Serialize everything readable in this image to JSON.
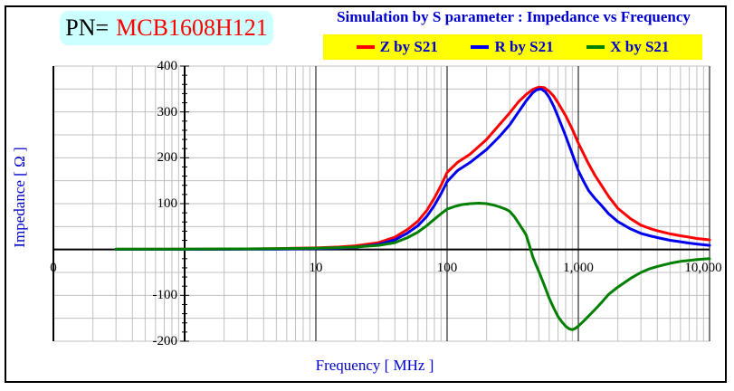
{
  "pn": {
    "prefix": "PN=",
    "part_number": "MCB1608H121",
    "box_color": "#CCFFFF"
  },
  "title": "Simulation by S parameter : Impedance vs Frequency",
  "legend": {
    "background": "#FFFF00",
    "items": [
      {
        "label": "Z by S21",
        "color": "#FF0000"
      },
      {
        "label": "R by S21",
        "color": "#0000EE"
      },
      {
        "label": "X by S21",
        "color": "#007F00"
      }
    ]
  },
  "axes": {
    "x_title": "Frequency [ MHz ]",
    "y_title": "Impedance [ Ω ]",
    "x_ticks": [
      {
        "label": "0",
        "f": 0.1
      },
      {
        "label": "10",
        "f": 10
      },
      {
        "label": "100",
        "f": 100
      },
      {
        "label": "1,000",
        "f": 1000
      },
      {
        "label": "10,000",
        "f": 10000,
        "dx": -7
      }
    ],
    "y_ticks": [
      400,
      300,
      200,
      100,
      -100,
      -200
    ]
  },
  "colors": {
    "text_blue": "#0000CC",
    "gridline": "#C0C0C0",
    "axis_black": "#000000"
  },
  "chart_data": {
    "type": "line",
    "title": "Simulation by S parameter : Impedance vs Frequency",
    "xlabel": "Frequency [ MHz ]",
    "ylabel": "Impedance [ Ω ]",
    "x_scale": "log",
    "xlim_mhz": [
      0.1,
      10000
    ],
    "ylim_ohm": [
      -200,
      400
    ],
    "grid": "on",
    "legend_position": "top",
    "series": [
      {
        "name": "Z by S21",
        "color": "#FF0000",
        "points": [
          [
            0.3,
            0.5
          ],
          [
            0.5,
            0.6
          ],
          [
            1,
            0.8
          ],
          [
            2,
            1
          ],
          [
            3,
            1.3
          ],
          [
            5,
            2
          ],
          [
            7,
            2.6
          ],
          [
            10,
            3.5
          ],
          [
            15,
            5.5
          ],
          [
            20,
            8
          ],
          [
            30,
            15
          ],
          [
            40,
            27
          ],
          [
            50,
            44
          ],
          [
            60,
            62
          ],
          [
            70,
            85
          ],
          [
            80,
            112
          ],
          [
            90,
            140
          ],
          [
            100,
            168
          ],
          [
            120,
            190
          ],
          [
            150,
            208
          ],
          [
            200,
            240
          ],
          [
            250,
            272
          ],
          [
            300,
            298
          ],
          [
            350,
            322
          ],
          [
            400,
            338
          ],
          [
            450,
            349
          ],
          [
            500,
            354
          ],
          [
            550,
            353
          ],
          [
            600,
            345
          ],
          [
            650,
            334
          ],
          [
            700,
            320
          ],
          [
            800,
            292
          ],
          [
            900,
            262
          ],
          [
            1000,
            232
          ],
          [
            1100,
            208
          ],
          [
            1200,
            186
          ],
          [
            1350,
            160
          ],
          [
            1500,
            140
          ],
          [
            1700,
            116
          ],
          [
            2000,
            90
          ],
          [
            2500,
            67
          ],
          [
            3000,
            53
          ],
          [
            3500,
            46
          ],
          [
            4000,
            41
          ],
          [
            5000,
            34
          ],
          [
            6000,
            30
          ],
          [
            7000,
            27
          ],
          [
            8000,
            24
          ],
          [
            10000,
            21
          ]
        ]
      },
      {
        "name": "R by S21",
        "color": "#0000EE",
        "points": [
          [
            0.3,
            0.3
          ],
          [
            1,
            0.4
          ],
          [
            3,
            0.7
          ],
          [
            5,
            1
          ],
          [
            10,
            1.8
          ],
          [
            15,
            3
          ],
          [
            20,
            5
          ],
          [
            30,
            11
          ],
          [
            40,
            21
          ],
          [
            50,
            36
          ],
          [
            60,
            52
          ],
          [
            70,
            72
          ],
          [
            80,
            96
          ],
          [
            90,
            122
          ],
          [
            100,
            148
          ],
          [
            120,
            172
          ],
          [
            150,
            190
          ],
          [
            200,
            218
          ],
          [
            250,
            246
          ],
          [
            300,
            272
          ],
          [
            350,
            300
          ],
          [
            400,
            324
          ],
          [
            450,
            342
          ],
          [
            480,
            348
          ],
          [
            520,
            350
          ],
          [
            560,
            344
          ],
          [
            600,
            332
          ],
          [
            650,
            312
          ],
          [
            700,
            290
          ],
          [
            800,
            248
          ],
          [
            900,
            208
          ],
          [
            1000,
            172
          ],
          [
            1100,
            148
          ],
          [
            1200,
            128
          ],
          [
            1350,
            110
          ],
          [
            1500,
            96
          ],
          [
            1700,
            78
          ],
          [
            2000,
            61
          ],
          [
            2500,
            45
          ],
          [
            3000,
            35
          ],
          [
            3500,
            30
          ],
          [
            4000,
            26
          ],
          [
            5000,
            20
          ],
          [
            6000,
            17
          ],
          [
            7000,
            14
          ],
          [
            8000,
            12
          ],
          [
            10000,
            9
          ]
        ]
      },
      {
        "name": "X by S21",
        "color": "#007F00",
        "points": [
          [
            0.3,
            0.8
          ],
          [
            1,
            1
          ],
          [
            3,
            1.4
          ],
          [
            5,
            1.8
          ],
          [
            10,
            2.8
          ],
          [
            15,
            4
          ],
          [
            20,
            5.5
          ],
          [
            30,
            9
          ],
          [
            40,
            15
          ],
          [
            50,
            26
          ],
          [
            60,
            38
          ],
          [
            70,
            52
          ],
          [
            80,
            66
          ],
          [
            90,
            78
          ],
          [
            100,
            88
          ],
          [
            115,
            94
          ],
          [
            130,
            98
          ],
          [
            150,
            100
          ],
          [
            175,
            101
          ],
          [
            200,
            100
          ],
          [
            225,
            97
          ],
          [
            250,
            93
          ],
          [
            280,
            88
          ],
          [
            300,
            83
          ],
          [
            325,
            72
          ],
          [
            350,
            58
          ],
          [
            375,
            45
          ],
          [
            400,
            32
          ],
          [
            420,
            12
          ],
          [
            435,
            -2
          ],
          [
            450,
            -16
          ],
          [
            475,
            -33
          ],
          [
            500,
            -48
          ],
          [
            550,
            -78
          ],
          [
            600,
            -106
          ],
          [
            650,
            -128
          ],
          [
            700,
            -146
          ],
          [
            750,
            -158
          ],
          [
            800,
            -167
          ],
          [
            850,
            -173
          ],
          [
            900,
            -175
          ],
          [
            950,
            -172
          ],
          [
            1000,
            -167
          ],
          [
            1100,
            -156
          ],
          [
            1200,
            -145
          ],
          [
            1350,
            -130
          ],
          [
            1500,
            -116
          ],
          [
            1700,
            -98
          ],
          [
            2000,
            -82
          ],
          [
            2500,
            -63
          ],
          [
            3000,
            -50
          ],
          [
            3500,
            -42
          ],
          [
            4000,
            -37
          ],
          [
            5000,
            -30
          ],
          [
            6000,
            -26
          ],
          [
            7000,
            -24
          ],
          [
            8000,
            -22
          ],
          [
            10000,
            -20
          ]
        ]
      }
    ]
  }
}
